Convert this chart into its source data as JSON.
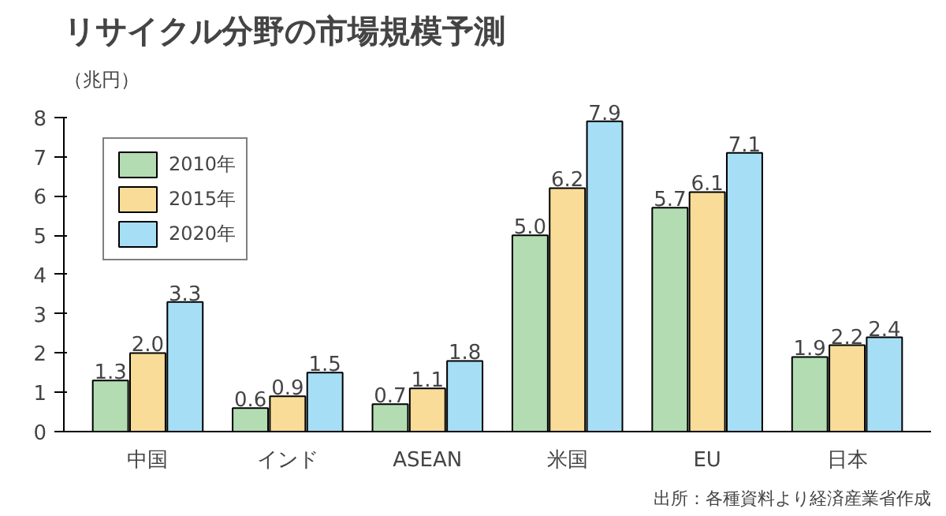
{
  "chart_data": {
    "type": "bar",
    "title": "リサイクル分野の市場規模予測",
    "ylabel": "（兆円）",
    "categories": [
      "中国",
      "インド",
      "ASEAN",
      "米国",
      "EU",
      "日本"
    ],
    "series": [
      {
        "name": "2010年",
        "color": "#b3dcb3",
        "values": [
          1.3,
          0.6,
          0.7,
          5.0,
          5.7,
          1.9
        ],
        "value_labels": [
          "1.3",
          "0.6",
          "0.7",
          "5.0",
          "5.7",
          "1.9"
        ]
      },
      {
        "name": "2015年",
        "color": "#f8dc98",
        "values": [
          2.0,
          0.9,
          1.1,
          6.2,
          6.1,
          2.2
        ],
        "value_labels": [
          "2.0",
          "0.9",
          "1.1",
          "6.2",
          "6.1",
          "2.2"
        ]
      },
      {
        "name": "2020年",
        "color": "#a6def5",
        "values": [
          3.3,
          1.5,
          1.8,
          7.9,
          7.1,
          2.4
        ],
        "value_labels": [
          "3.3",
          "1.5",
          "1.8",
          "7.9",
          "7.1",
          "2.4"
        ]
      }
    ],
    "ylim": [
      0,
      8
    ],
    "yticks": [
      0,
      1,
      2,
      3,
      4,
      5,
      6,
      7,
      8
    ],
    "legend": "top left",
    "grid": false,
    "annotations": [
      "出所：各種資料より経済産業省作成"
    ]
  }
}
